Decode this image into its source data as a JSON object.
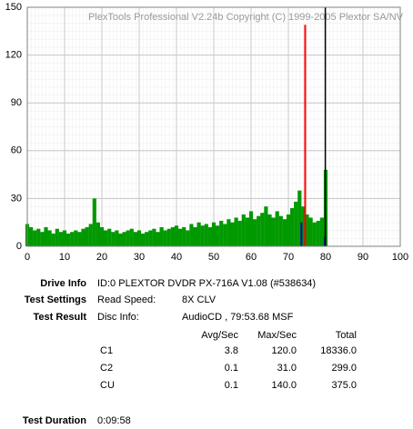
{
  "chart_data": {
    "type": "bar",
    "title": "PlexTools Professional V2.24b Copyright (C) 1999-2005 Plextor SA/NV",
    "xlim": [
      0,
      100
    ],
    "xticks": [
      0,
      10,
      20,
      30,
      40,
      50,
      60,
      70,
      80,
      90,
      100
    ],
    "ylim": [
      0,
      150
    ],
    "yticks": [
      0,
      30,
      60,
      90,
      120,
      150
    ],
    "grid": true,
    "series": [
      {
        "name": "C1",
        "color": "#009900",
        "x": [
          0,
          1,
          2,
          3,
          4,
          5,
          6,
          7,
          8,
          9,
          10,
          11,
          12,
          13,
          14,
          15,
          16,
          17,
          18,
          19,
          20,
          21,
          22,
          23,
          24,
          25,
          26,
          27,
          28,
          29,
          30,
          31,
          32,
          33,
          34,
          35,
          36,
          37,
          38,
          39,
          40,
          41,
          42,
          43,
          44,
          45,
          46,
          47,
          48,
          49,
          50,
          51,
          52,
          53,
          54,
          55,
          56,
          57,
          58,
          59,
          60,
          61,
          62,
          63,
          64,
          65,
          66,
          67,
          68,
          69,
          70,
          71,
          72,
          73,
          74,
          75,
          76,
          77,
          78,
          79,
          80
        ],
        "values": [
          14,
          12,
          10,
          11,
          9,
          12,
          10,
          8,
          11,
          9,
          10,
          8,
          9,
          10,
          9,
          11,
          12,
          14,
          30,
          15,
          12,
          10,
          11,
          9,
          10,
          8,
          9,
          10,
          11,
          9,
          10,
          8,
          9,
          10,
          11,
          9,
          12,
          10,
          11,
          12,
          13,
          11,
          12,
          10,
          14,
          12,
          15,
          13,
          14,
          12,
          15,
          13,
          16,
          14,
          17,
          15,
          18,
          16,
          20,
          18,
          22,
          17,
          19,
          21,
          25,
          20,
          18,
          22,
          19,
          17,
          20,
          24,
          28,
          35,
          25,
          20,
          18,
          15,
          16,
          18,
          48
        ]
      },
      {
        "name": "C2",
        "color": "#0000cc",
        "x": [
          73.5,
          79.8
        ],
        "values": [
          15,
          6
        ]
      },
      {
        "name": "CU",
        "color": "#ff0000",
        "x": [
          74.5
        ],
        "values": [
          139
        ]
      }
    ],
    "disc_end": 79.9
  },
  "info": {
    "drive_info": {
      "label": "Drive Info",
      "value": "ID:0 PLEXTOR DVDR PX-716A V1.08 (#538634)"
    },
    "test_settings": {
      "label": "Test Settings",
      "key": "Read Speed:",
      "value": "8X CLV"
    },
    "test_result": {
      "label": "Test Result",
      "key": "Disc Info:",
      "value": "AudioCD , 79:53.68 MSF"
    },
    "table": {
      "header": [
        "Avg/Sec",
        "Max/Sec",
        "Total"
      ],
      "rows": [
        [
          "C1",
          "3.8",
          "120.0",
          "18336.0"
        ],
        [
          "C2",
          "0.1",
          "31.0",
          "299.0"
        ],
        [
          "CU",
          "0.1",
          "140.0",
          "375.0"
        ]
      ]
    },
    "test_duration": {
      "label": "Test Duration",
      "value": "0:09:58"
    }
  }
}
